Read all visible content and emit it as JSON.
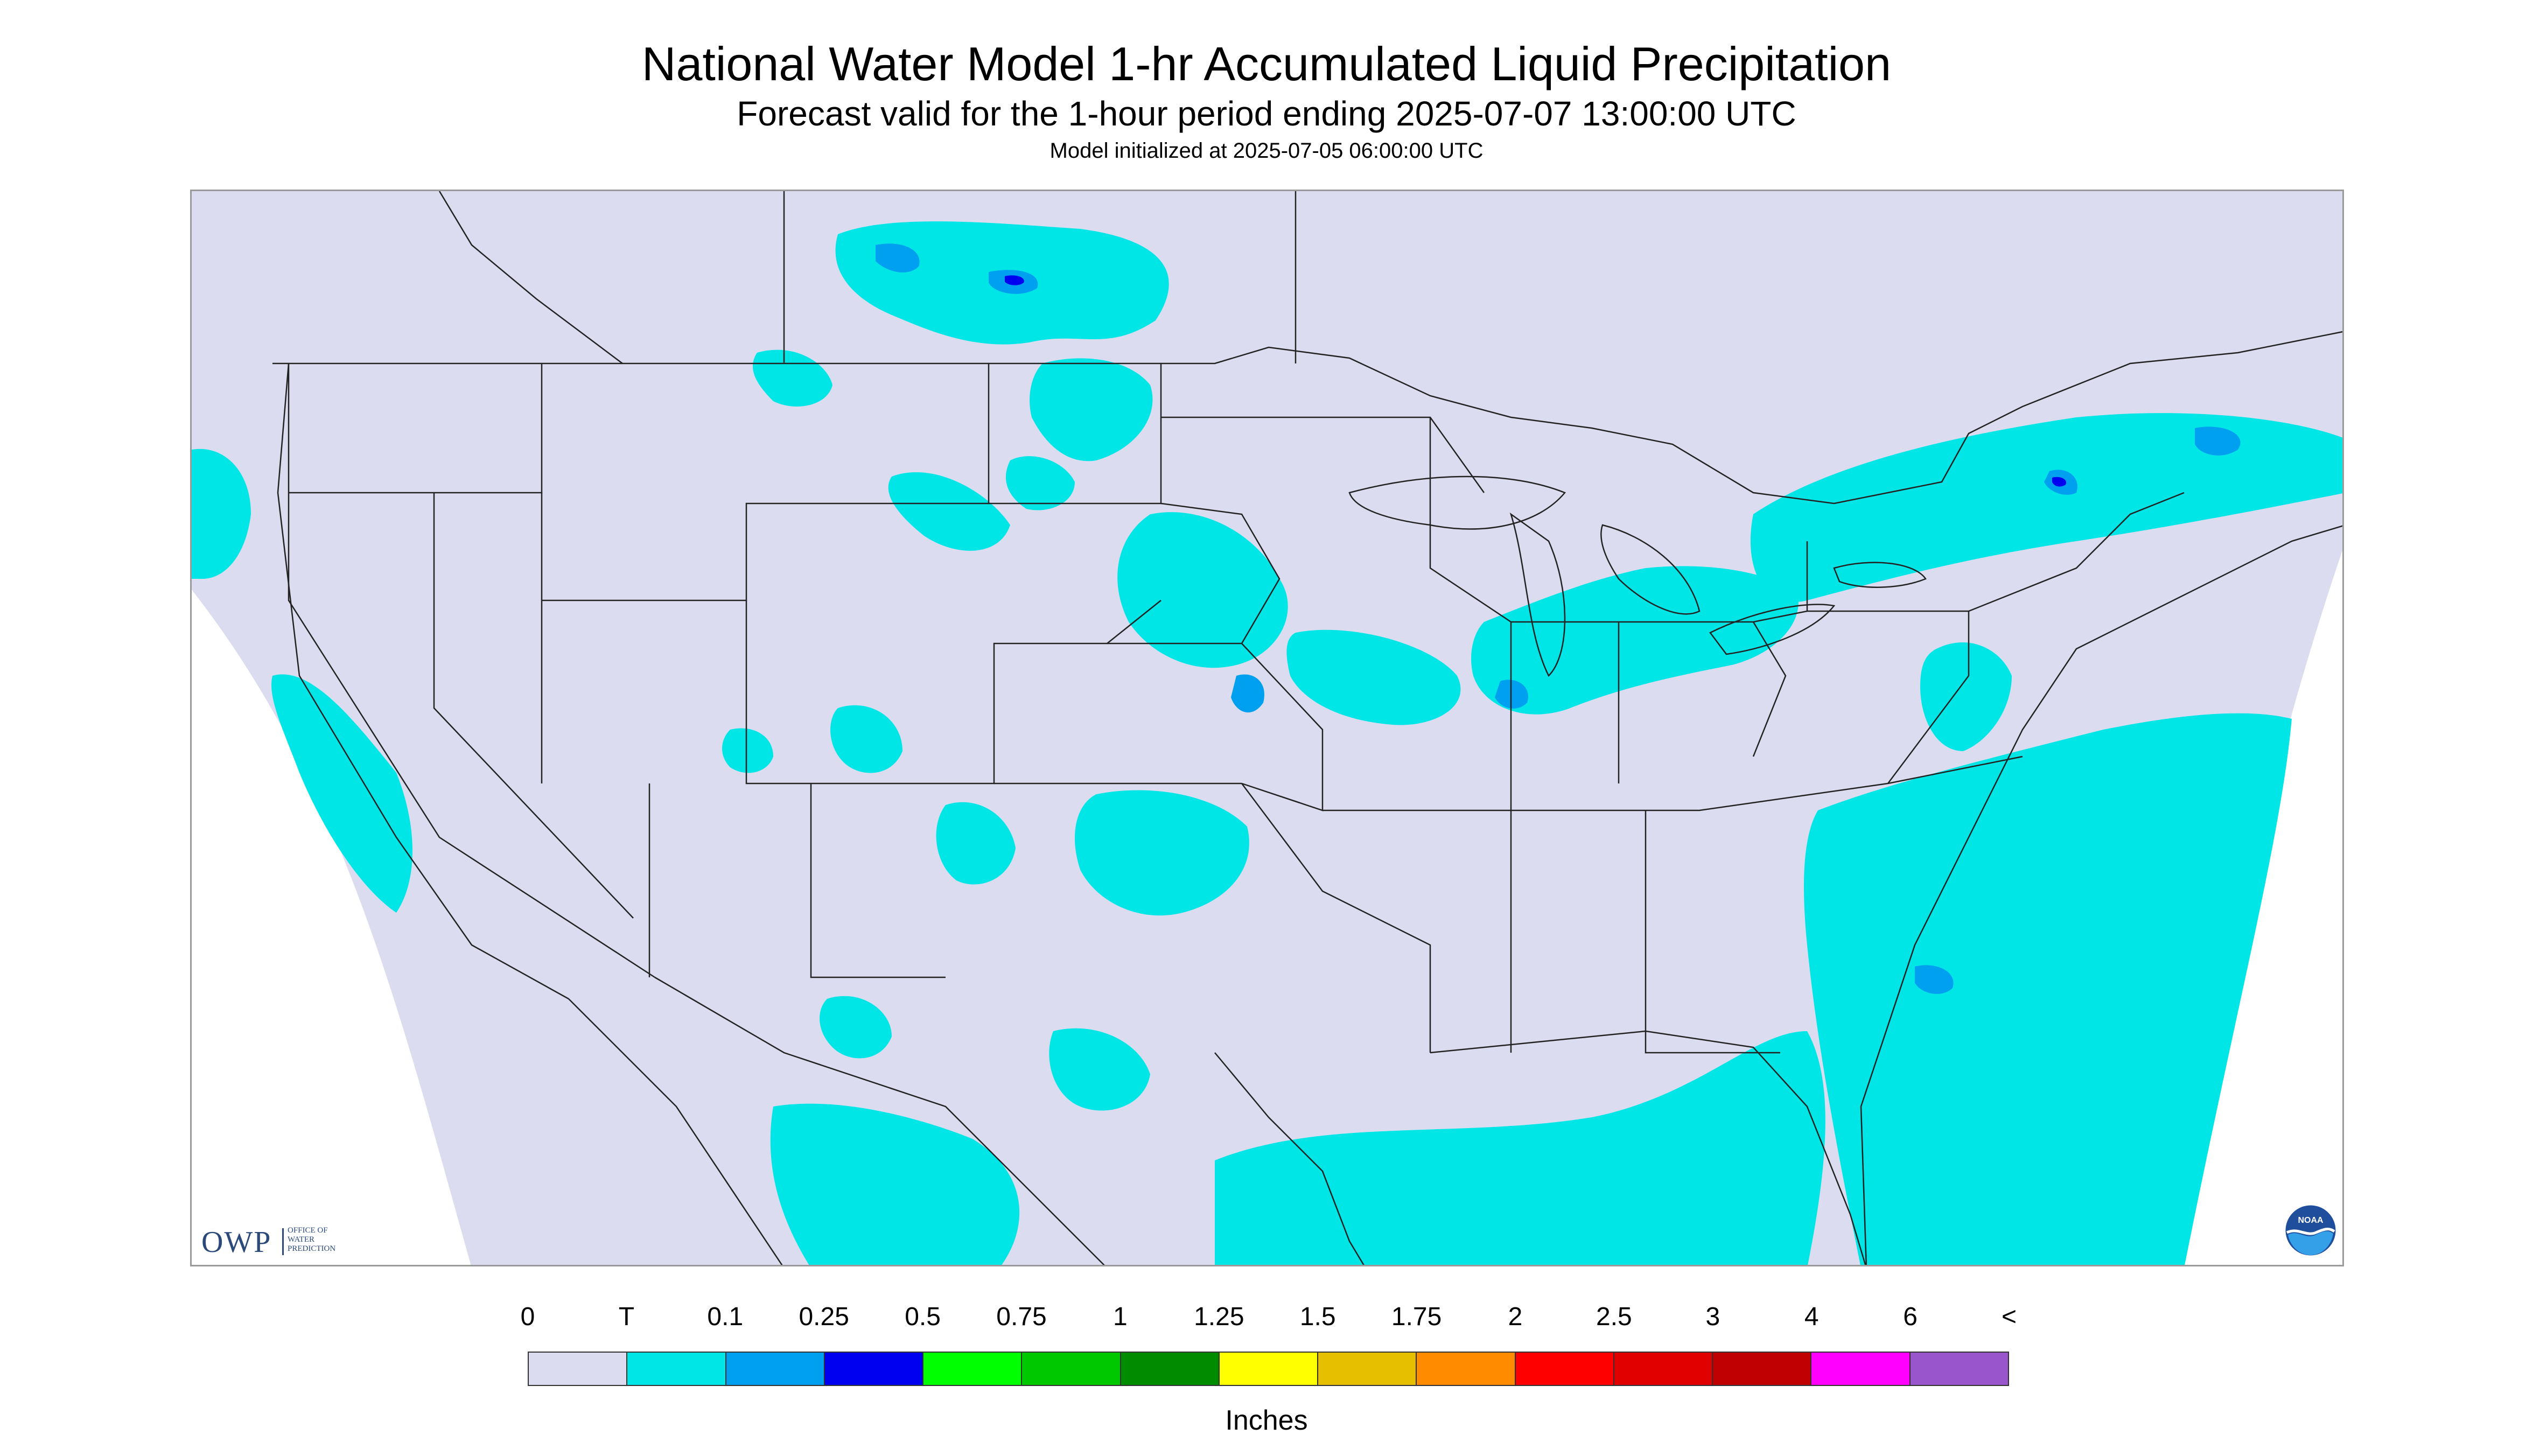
{
  "title": "National Water Model 1-hr Accumulated Liquid Precipitation",
  "subtitle": "Forecast valid for the 1-hour period ending 2025-07-07 13:00:00 UTC",
  "init_line": "Model initialized at 2025-07-05 06:00:00 UTC",
  "units": "Inches",
  "legend": {
    "labels": [
      "0",
      "T",
      "0.1",
      "0.25",
      "0.5",
      "0.75",
      "1",
      "1.25",
      "1.5",
      "1.75",
      "2",
      "2.5",
      "3",
      "4",
      "6",
      "<"
    ],
    "colors": [
      "#dcdcf0",
      "#00e6e6",
      "#00a0f0",
      "#0000f0",
      "#00ff00",
      "#00c800",
      "#008c00",
      "#ffff00",
      "#e6c000",
      "#ff8c00",
      "#ff0000",
      "#e00000",
      "#c00000",
      "#ff00ff",
      "#9955cc"
    ]
  },
  "map": {
    "background": "#dcdcf0",
    "precip_light": "#00e6e6",
    "precip_moderate": "#00a0f0",
    "precip_heavy": "#0000f0",
    "border_color": "#222222"
  },
  "logos": {
    "owp": {
      "letters": "OWP",
      "line1": "OFFICE OF",
      "line2": "WATER",
      "line3": "PREDICTION"
    },
    "noaa": {
      "text": "NOAA"
    }
  }
}
